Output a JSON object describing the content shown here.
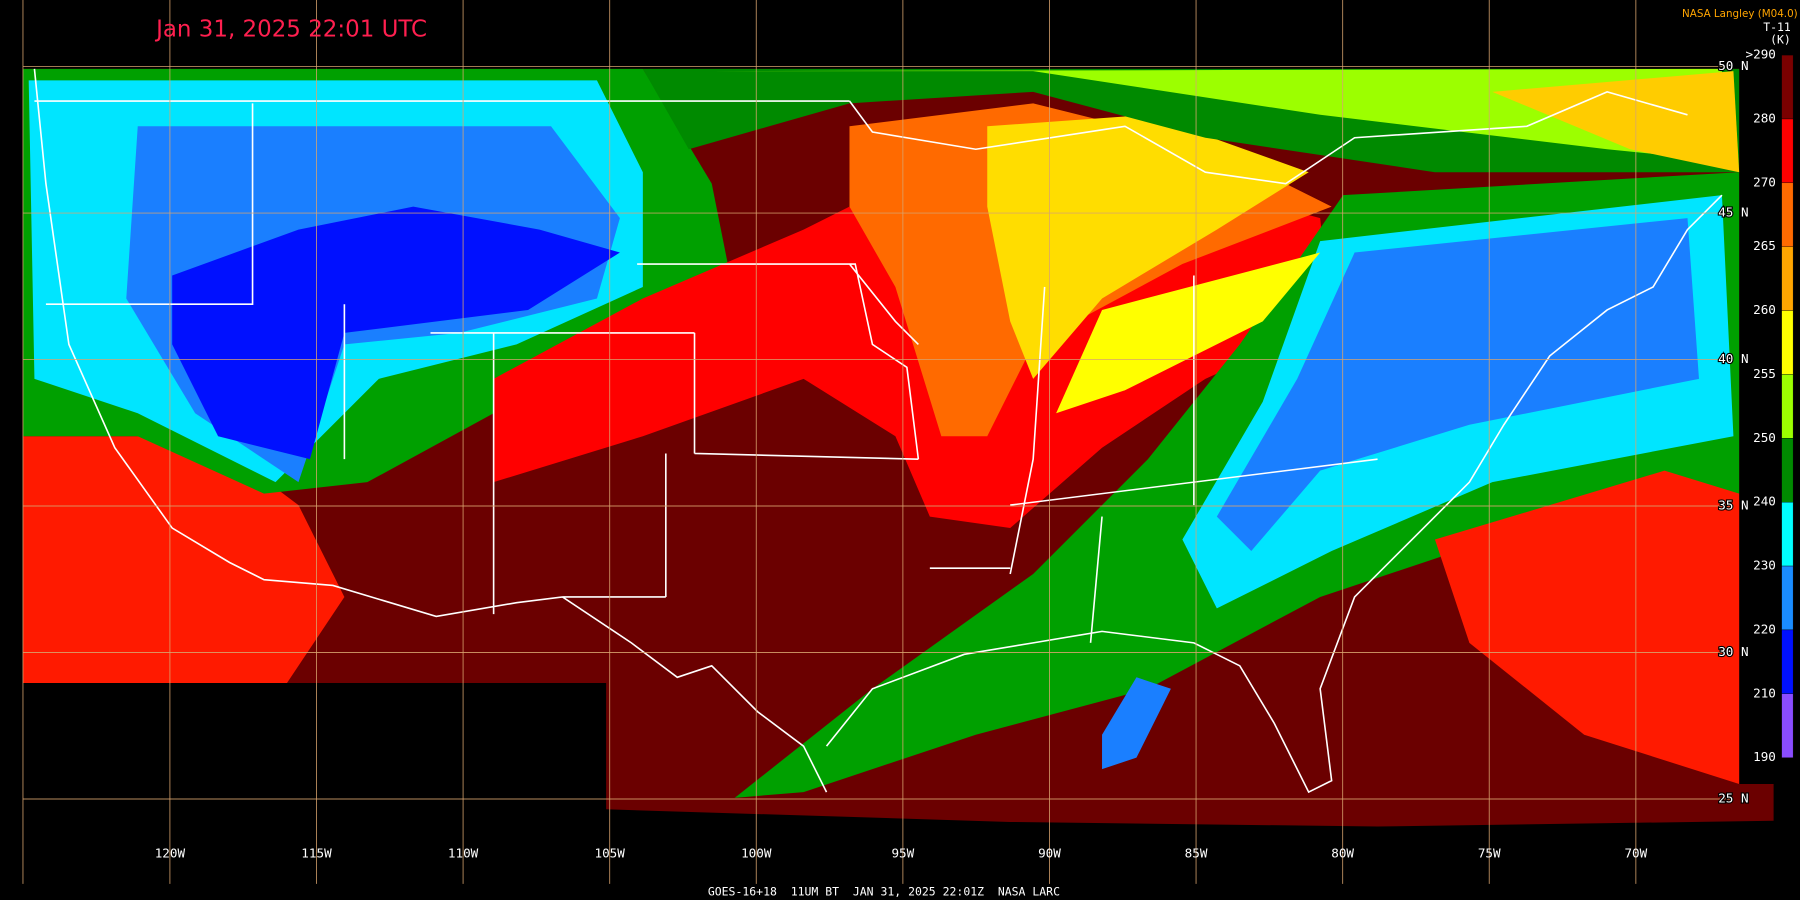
{
  "header": {
    "title": "Jan 31, 2025 22:01 UTC",
    "credit": "NASA Langley (M04.0)"
  },
  "colorbar": {
    "title": "T-11",
    "unit": "(K)",
    "ticks": [
      ">290",
      "280",
      "270",
      "265",
      "260",
      "255",
      "250",
      "240",
      "230",
      "220",
      "210",
      "190"
    ],
    "colors": [
      "#7a0000",
      "#ff0000",
      "#ff6a00",
      "#ffa500",
      "#ffff00",
      "#9cff00",
      "#008a00",
      "#00ffff",
      "#1a8cff",
      "#0010ff",
      "#8a4cff"
    ]
  },
  "longitudes": [
    "120W",
    "115W",
    "110W",
    "105W",
    "100W",
    "95W",
    "90W",
    "85W",
    "80W",
    "75W",
    "70W"
  ],
  "latitudes": [
    "50 N",
    "45 N",
    "40 N",
    "35 N",
    "30 N",
    "25 N"
  ],
  "footer": "GOES-16+18  11UM BT  JAN 31, 2025 22:01Z  NASA LARC"
}
